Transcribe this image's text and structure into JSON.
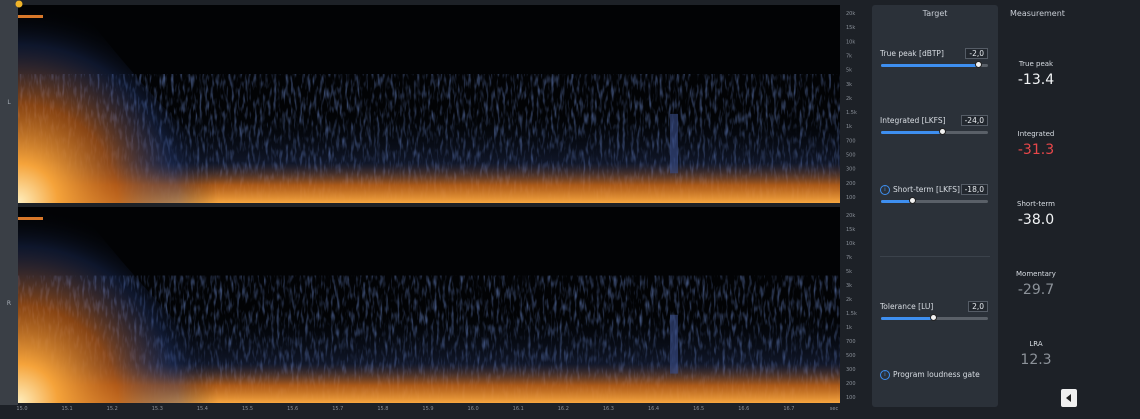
{
  "spectrogram": {
    "channels": [
      "L",
      "R"
    ],
    "freq_labels": [
      "20k",
      "15k",
      "10k",
      "7k",
      "5k",
      "3k",
      "2k",
      "1.5k",
      "1k",
      "700",
      "500",
      "300",
      "200",
      "100"
    ],
    "time_labels": [
      "15.0",
      "15.1",
      "15.2",
      "15.3",
      "15.4",
      "15.5",
      "15.6",
      "15.7",
      "15.8",
      "15.9",
      "16.0",
      "16.1",
      "16.2",
      "16.3",
      "16.4",
      "16.5",
      "16.6",
      "16.7",
      "sec"
    ]
  },
  "target": {
    "title": "Target",
    "controls": [
      {
        "label": "True peak [dBTP]",
        "value": "-2,0"
      },
      {
        "label": "Integrated [LKFS]",
        "value": "-24,0"
      },
      {
        "label": "Short-term [LKFS]",
        "value": "-18,0"
      },
      {
        "label": "Tolerance [LU]",
        "value": "2,0"
      }
    ],
    "gate": "Program loudness gate"
  },
  "measurement": {
    "title": "Measurement",
    "items": [
      {
        "label": "True peak",
        "value": "-13.4"
      },
      {
        "label": "Integrated",
        "value": "-31.3"
      },
      {
        "label": "Short-term",
        "value": "-38.0"
      },
      {
        "label": "Momentary",
        "value": "-29.7"
      },
      {
        "label": "LRA",
        "value": "12.3"
      }
    ]
  }
}
